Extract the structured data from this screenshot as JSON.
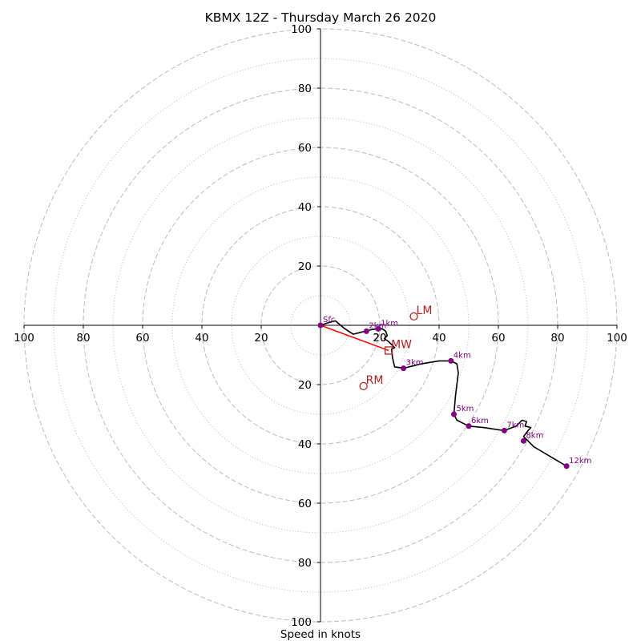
{
  "chart_data": {
    "type": "hodograph",
    "title": "KBMX 12Z - Thursday March 26 2020",
    "xlabel": "Speed in knots",
    "x_tick_labels": [
      "100",
      "80",
      "60",
      "40",
      "20",
      "",
      "20",
      "40",
      "60",
      "80",
      "100"
    ],
    "y_tick_labels": [
      "100",
      "80",
      "60",
      "40",
      "20",
      "",
      "20",
      "40",
      "60",
      "80",
      "100"
    ],
    "xlim": [
      -100,
      100
    ],
    "ylim": [
      -100,
      100
    ],
    "rings_major": [
      20,
      40,
      60,
      80,
      100
    ],
    "rings_minor": [
      10,
      30,
      50,
      70,
      90
    ],
    "inner_label": "20",
    "colors": {
      "trace": "#000000",
      "height_markers": "#800080",
      "storm_motion": "#b22222",
      "mean_wind_line": "#ff0000",
      "rings": "#bbbbbb"
    },
    "trace": [
      [
        0,
        0
      ],
      [
        3,
        1
      ],
      [
        5,
        1.5
      ],
      [
        8,
        -1
      ],
      [
        11,
        -3
      ],
      [
        13,
        -2.5
      ],
      [
        15,
        -2
      ],
      [
        17,
        -1.5
      ],
      [
        19,
        -1.2
      ],
      [
        20,
        -1
      ],
      [
        21,
        -1.3
      ],
      [
        22,
        -2
      ],
      [
        22.5,
        -3.5
      ],
      [
        21.5,
        -4.5
      ],
      [
        23,
        -5.5
      ],
      [
        25,
        -7.5
      ],
      [
        24,
        -8
      ],
      [
        24.2,
        -10
      ],
      [
        24.3,
        -11
      ],
      [
        25,
        -14
      ],
      [
        28,
        -14.5
      ],
      [
        34,
        -13
      ],
      [
        40,
        -12
      ],
      [
        44,
        -12
      ],
      [
        46,
        -13
      ],
      [
        46.5,
        -16
      ],
      [
        46,
        -20
      ],
      [
        45.5,
        -24
      ],
      [
        45,
        -30
      ],
      [
        46,
        -32
      ],
      [
        50,
        -34
      ],
      [
        55,
        -34.5
      ],
      [
        62,
        -35.5
      ],
      [
        66,
        -34
      ],
      [
        68,
        -32
      ],
      [
        69.5,
        -32.5
      ],
      [
        69,
        -34
      ],
      [
        71,
        -34.5
      ],
      [
        70,
        -35.5
      ],
      [
        68.5,
        -37.5
      ],
      [
        70,
        -39
      ],
      [
        72,
        -41
      ],
      [
        83,
        -47.5
      ]
    ],
    "height_markers": [
      {
        "label": "Sfc",
        "x": 0,
        "y": 0
      },
      {
        "label": "1km",
        "x": 19.5,
        "y": -1.2
      },
      {
        "label": "2km",
        "x": 15.5,
        "y": -2
      },
      {
        "label": "3km",
        "x": 28,
        "y": -14.5
      },
      {
        "label": "4km",
        "x": 44,
        "y": -12
      },
      {
        "label": "5km",
        "x": 45,
        "y": -30
      },
      {
        "label": "6km",
        "x": 50,
        "y": -34
      },
      {
        "label": "7km",
        "x": 62,
        "y": -35.5
      },
      {
        "label": "8km",
        "x": 68.5,
        "y": -39
      },
      {
        "label": "12km",
        "x": 83,
        "y": -47.5
      }
    ],
    "storm_motions": [
      {
        "label": "LM",
        "marker": "circle",
        "x": 31.5,
        "y": 3
      },
      {
        "label": "MW",
        "marker": "square",
        "x": 23,
        "y": -8.5
      },
      {
        "label": "RM",
        "marker": "circle",
        "x": 14.5,
        "y": -20.5
      }
    ],
    "mean_wind_line": [
      [
        0,
        0
      ],
      [
        23,
        -8.5
      ]
    ]
  }
}
